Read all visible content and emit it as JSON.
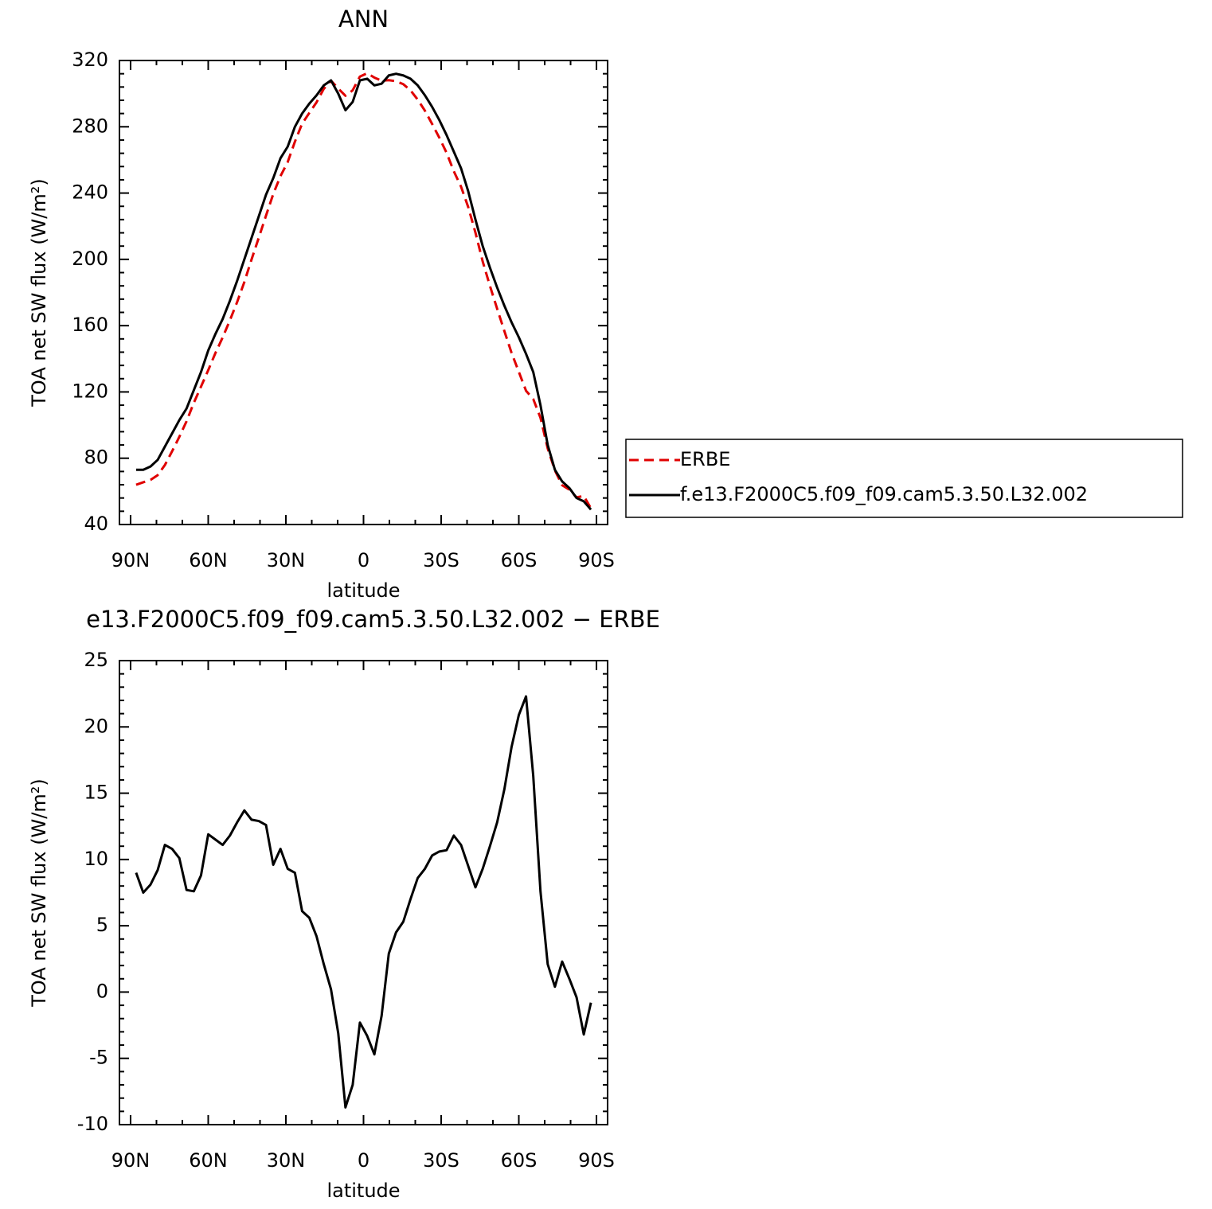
{
  "chart_data": [
    {
      "type": "line",
      "title": "ANN",
      "xlabel": "latitude",
      "ylabel": "TOA net SW flux (W/m²)",
      "xlim": [
        94.3,
        -94.3
      ],
      "xticks": [
        {
          "value": 90,
          "label": "90N"
        },
        {
          "value": 60,
          "label": "60N"
        },
        {
          "value": 30,
          "label": "30N"
        },
        0,
        {
          "value": -30,
          "label": "30S"
        },
        {
          "value": -60,
          "label": "60S"
        },
        {
          "value": -90,
          "label": "90S"
        }
      ],
      "ylim": [
        40,
        320
      ],
      "yticks": [
        40,
        80,
        120,
        160,
        200,
        240,
        280,
        320
      ],
      "legend": "outside right",
      "x": [
        87.86,
        85.1,
        82.31,
        79.53,
        76.74,
        73.95,
        71.16,
        68.37,
        65.58,
        62.79,
        60.0,
        57.21,
        54.42,
        51.63,
        48.84,
        46.05,
        43.25,
        40.46,
        37.67,
        34.88,
        32.09,
        29.3,
        26.51,
        23.72,
        20.93,
        18.14,
        15.35,
        12.56,
        9.77,
        6.98,
        4.19,
        1.4,
        -1.4,
        -4.19,
        -6.98,
        -9.77,
        -12.56,
        -15.35,
        -18.14,
        -20.93,
        -23.72,
        -26.51,
        -29.3,
        -32.09,
        -34.88,
        -37.67,
        -40.46,
        -43.25,
        -46.05,
        -48.84,
        -51.63,
        -54.42,
        -57.21,
        -60.0,
        -62.79,
        -65.58,
        -68.37,
        -71.16,
        -73.95,
        -76.74,
        -79.53,
        -82.31,
        -85.1,
        -87.86
      ],
      "series": [
        {
          "name": "ERBE",
          "color": "#e00000",
          "style": "dashed",
          "values": [
            64.0,
            65.5,
            66.9,
            69.8,
            75.9,
            84.2,
            92.9,
            102.3,
            113.4,
            123.2,
            133.1,
            143.5,
            152.9,
            163.2,
            174.2,
            186.3,
            200.0,
            213.1,
            226.4,
            239.4,
            250.2,
            258.7,
            271.0,
            281.9,
            288.4,
            294.8,
            302.9,
            307.8,
            303.1,
            298.7,
            302.0,
            310.3,
            312.3,
            309.7,
            307.8,
            308.1,
            307.5,
            305.7,
            302.0,
            296.4,
            289.7,
            281.7,
            273.4,
            264.3,
            253.2,
            243.9,
            231.5,
            216.1,
            198.7,
            184.0,
            170.2,
            156.7,
            143.5,
            132.1,
            120.7,
            115.7,
            104.4,
            85.9,
            72.6,
            63.7,
            61.0,
            56.4,
            57.2,
            49.8
          ]
        },
        {
          "name": "f.e13.F2000C5.f09_f09.cam5.3.50.L32.002",
          "color": "#000000",
          "style": "solid",
          "values": [
            73,
            73,
            75,
            79,
            87,
            95,
            103,
            110,
            121,
            132,
            145,
            155,
            164,
            175,
            187,
            200,
            213,
            226,
            239,
            249,
            261,
            268,
            280,
            288,
            294,
            299,
            305,
            308,
            300,
            290,
            295,
            308,
            309,
            305,
            306,
            311,
            312,
            311,
            309,
            305,
            299,
            292,
            284,
            275,
            265,
            255,
            241,
            224,
            208,
            195,
            183,
            172,
            162,
            153,
            143,
            132,
            112,
            88,
            73,
            66,
            62,
            56,
            54,
            49
          ]
        }
      ]
    },
    {
      "type": "line",
      "title": "e13.F2000C5.f09_f09.cam5.3.50.L32.002 − ERBE",
      "xlabel": "latitude",
      "ylabel": "TOA net SW flux (W/m²)",
      "xlim": [
        94.3,
        -94.3
      ],
      "xticks": [
        {
          "value": 90,
          "label": "90N"
        },
        {
          "value": 60,
          "label": "60N"
        },
        {
          "value": 30,
          "label": "30N"
        },
        0,
        {
          "value": -30,
          "label": "30S"
        },
        {
          "value": -60,
          "label": "60S"
        },
        {
          "value": -90,
          "label": "90S"
        }
      ],
      "ylim": [
        -10,
        25
      ],
      "yticks": [
        -10,
        -5,
        0,
        5,
        10,
        15,
        20,
        25
      ],
      "x": [
        87.86,
        85.1,
        82.31,
        79.53,
        76.74,
        73.95,
        71.16,
        68.37,
        65.58,
        62.79,
        60.0,
        57.21,
        54.42,
        51.63,
        48.84,
        46.05,
        43.25,
        40.46,
        37.67,
        34.88,
        32.09,
        29.3,
        26.51,
        23.72,
        20.93,
        18.14,
        15.35,
        12.56,
        9.77,
        6.98,
        4.19,
        1.4,
        -1.4,
        -4.19,
        -6.98,
        -9.77,
        -12.56,
        -15.35,
        -18.14,
        -20.93,
        -23.72,
        -26.51,
        -29.3,
        -32.09,
        -34.88,
        -37.67,
        -40.46,
        -43.25,
        -46.05,
        -48.84,
        -51.63,
        -54.42,
        -57.21,
        -60.0,
        -62.79,
        -65.58,
        -68.37,
        -71.16,
        -73.95,
        -76.74,
        -79.53,
        -82.31,
        -85.1,
        -87.86
      ],
      "series": [
        {
          "color": "#000000",
          "style": "solid",
          "values": [
            9.0,
            7.5,
            8.1,
            9.2,
            11.1,
            10.8,
            10.1,
            7.7,
            7.6,
            8.8,
            11.9,
            11.5,
            11.1,
            11.8,
            12.8,
            13.7,
            13.0,
            12.9,
            12.6,
            9.6,
            10.8,
            9.3,
            9.0,
            6.1,
            5.6,
            4.2,
            2.1,
            0.2,
            -3.1,
            -8.7,
            -7.0,
            -2.3,
            -3.3,
            -4.7,
            -1.8,
            2.9,
            4.5,
            5.3,
            7.0,
            8.6,
            9.3,
            10.3,
            10.6,
            10.7,
            11.8,
            11.1,
            9.5,
            7.9,
            9.3,
            11.0,
            12.8,
            15.3,
            18.5,
            20.9,
            22.3,
            16.3,
            7.6,
            2.1,
            0.4,
            2.3,
            1.0,
            -0.4,
            -3.2,
            -0.8
          ]
        }
      ]
    }
  ]
}
